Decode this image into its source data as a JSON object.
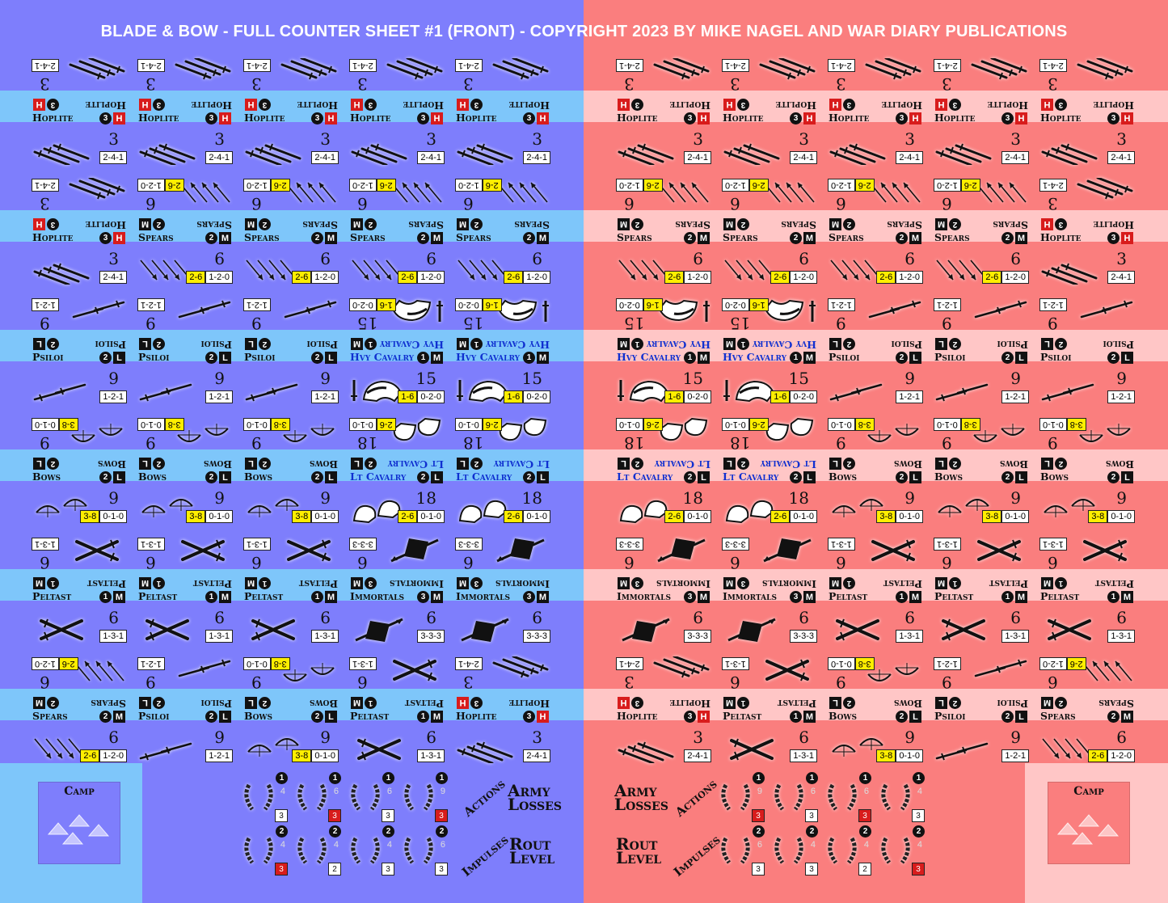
{
  "title": "BLADE & BOW - FULL COUNTER SHEET #1 (FRONT) - COPYRIGHT 2023 BY MIKE NAGEL AND WAR DIARY PUBLICATIONS",
  "colors": {
    "blue_bg": "#7e7efc",
    "blue_band": "#7ec6fa",
    "red_bg": "#fa7e7e",
    "red_band": "#ffc6c6",
    "camp_blue": "#7ec6fa",
    "camp_red": "#ffc6c6"
  },
  "units": {
    "hoplite": {
      "name": "Hoplite",
      "factor": "3",
      "circle": "3",
      "sq": "H",
      "stats": [
        {
          "v": "2-4-1",
          "y": false
        }
      ],
      "icon": "swords-icon",
      "cav": false
    },
    "spears": {
      "name": "Spears",
      "factor": "6",
      "circle": "2",
      "sq": "M",
      "stats": [
        {
          "v": "2-6",
          "y": true
        },
        {
          "v": "1-2-0",
          "y": false
        }
      ],
      "icon": "spears-icon",
      "cav": false
    },
    "psiloi": {
      "name": "Psiloi",
      "factor": "9",
      "circle": "2",
      "sq": "L",
      "stats": [
        {
          "v": "1-2-1",
          "y": false
        }
      ],
      "icon": "javelins-icon",
      "cav": false
    },
    "bows": {
      "name": "Bows",
      "factor": "9",
      "circle": "2",
      "sq": "L",
      "stats": [
        {
          "v": "3-8",
          "y": true
        },
        {
          "v": "0-1-0",
          "y": false
        }
      ],
      "icon": "bows-icon",
      "cav": false
    },
    "peltast": {
      "name": "Peltast",
      "factor": "6",
      "circle": "1",
      "sq": "M",
      "stats": [
        {
          "v": "1-3-1",
          "y": false
        }
      ],
      "icon": "crossed-swords-icon",
      "cav": false
    },
    "immortals": {
      "name": "Immortals",
      "factor": "6",
      "circle": "3",
      "sq": "M",
      "stats": [
        {
          "v": "3-3-3",
          "y": false
        }
      ],
      "icon": "shield-spear-icon",
      "cav": false
    },
    "hvycav": {
      "name": "Hvy Cavalry",
      "factor": "15",
      "circle": "1",
      "sq": "M",
      "stats": [
        {
          "v": "1-6",
          "y": true
        },
        {
          "v": "0-2-0",
          "y": false
        }
      ],
      "icon": "heavy-horse-icon",
      "cav": true
    },
    "ltcav": {
      "name": "Lt Cavalry",
      "factor": "18",
      "circle": "2",
      "sq": "L",
      "stats": [
        {
          "v": "2-6",
          "y": true
        },
        {
          "v": "0-1-0",
          "y": false
        }
      ],
      "icon": "light-horse-icon",
      "cav": true
    }
  },
  "blue_grid": [
    [
      "hoplite",
      "hoplite",
      "hoplite",
      "hoplite",
      "hoplite"
    ],
    [
      "hoplite",
      "spears",
      "spears",
      "spears",
      "spears"
    ],
    [
      "psiloi",
      "psiloi",
      "psiloi",
      "hvycav",
      "hvycav"
    ],
    [
      "bows",
      "bows",
      "bows",
      "ltcav",
      "ltcav"
    ],
    [
      "peltast",
      "peltast",
      "peltast",
      "immortals",
      "immortals"
    ],
    [
      "spears",
      "psiloi",
      "bows",
      "peltast",
      "hoplite"
    ]
  ],
  "red_grid": [
    [
      "hoplite",
      "hoplite",
      "hoplite",
      "hoplite",
      "hoplite"
    ],
    [
      "spears",
      "spears",
      "spears",
      "spears",
      "hoplite"
    ],
    [
      "hvycav",
      "hvycav",
      "psiloi",
      "psiloi",
      "psiloi"
    ],
    [
      "ltcav",
      "ltcav",
      "bows",
      "bows",
      "bows"
    ],
    [
      "immortals",
      "immortals",
      "peltast",
      "peltast",
      "peltast"
    ],
    [
      "hoplite",
      "peltast",
      "bows",
      "psiloi",
      "spears"
    ]
  ],
  "camp": {
    "label": "Camp"
  },
  "tracks": {
    "army_losses": "Army Losses",
    "rout_level": "Rout Level",
    "actions": "Actions",
    "impulses": "Impulses"
  },
  "blue_markers": {
    "top": [
      {
        "c": "1",
        "m": "4",
        "b": "3",
        "red": false
      },
      {
        "c": "1",
        "m": "6",
        "b": "3",
        "red": true
      },
      {
        "c": "1",
        "m": "6",
        "b": "3",
        "red": false
      },
      {
        "c": "1",
        "m": "9",
        "b": "3",
        "red": true
      }
    ],
    "bottom": [
      {
        "c": "2",
        "m": "4",
        "b": "3",
        "red": true
      },
      {
        "c": "2",
        "m": "4",
        "b": "2",
        "red": false
      },
      {
        "c": "2",
        "m": "4",
        "b": "3",
        "red": false
      },
      {
        "c": "2",
        "m": "6",
        "b": "3",
        "red": false
      }
    ]
  },
  "red_markers": {
    "top": [
      {
        "c": "1",
        "m": "9",
        "b": "3",
        "red": true
      },
      {
        "c": "1",
        "m": "6",
        "b": "3",
        "red": false
      },
      {
        "c": "1",
        "m": "6",
        "b": "3",
        "red": true
      },
      {
        "c": "1",
        "m": "4",
        "b": "3",
        "red": false
      }
    ],
    "bottom": [
      {
        "c": "2",
        "m": "6",
        "b": "3",
        "red": false
      },
      {
        "c": "2",
        "m": "4",
        "b": "3",
        "red": false
      },
      {
        "c": "2",
        "m": "4",
        "b": "2",
        "red": false
      },
      {
        "c": "2",
        "m": "4",
        "b": "3",
        "red": true
      }
    ]
  }
}
